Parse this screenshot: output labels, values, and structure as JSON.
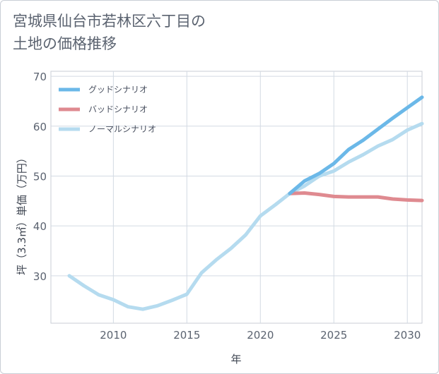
{
  "title_lines": [
    "宮城県仙台市若林区六丁目の",
    "土地の価格推移"
  ],
  "chart_data": {
    "type": "line",
    "xlabel": "年",
    "ylabel": "坪（3.3㎡）単価（万円）",
    "xlim": [
      2005.75,
      2031
    ],
    "ylim": [
      20.5,
      71
    ],
    "xticks": [
      2010,
      2015,
      2020,
      2025,
      2030
    ],
    "yticks": [
      30,
      40,
      50,
      60,
      70
    ],
    "grid": true,
    "legend_position": "top-left",
    "series": [
      {
        "name": "グッドシナリオ",
        "color": "#6bb8e8",
        "x": [
          2022,
          2023,
          2024,
          2025,
          2026,
          2027,
          2028,
          2029,
          2030,
          2031
        ],
        "y": [
          46.5,
          49.0,
          50.5,
          52.5,
          55.3,
          57.2,
          59.4,
          61.6,
          63.7,
          65.8
        ]
      },
      {
        "name": "バッドシナリオ",
        "color": "#df8a90",
        "x": [
          2022,
          2023,
          2024,
          2025,
          2026,
          2027,
          2028,
          2029,
          2030,
          2031
        ],
        "y": [
          46.5,
          46.6,
          46.3,
          45.9,
          45.8,
          45.8,
          45.8,
          45.4,
          45.2,
          45.1
        ]
      },
      {
        "name": "ノーマルシナリオ",
        "color": "#b5dbef",
        "x": [
          2007,
          2008,
          2009,
          2010,
          2011,
          2012,
          2013,
          2014,
          2015,
          2016,
          2017,
          2018,
          2019,
          2020,
          2021,
          2022,
          2023,
          2024,
          2025,
          2026,
          2027,
          2028,
          2029,
          2030,
          2031
        ],
        "y": [
          30.0,
          28.0,
          26.2,
          25.2,
          23.8,
          23.3,
          24.0,
          25.1,
          26.3,
          30.6,
          33.2,
          35.5,
          38.2,
          42.0,
          44.2,
          46.5,
          48.0,
          50.0,
          51.0,
          52.8,
          54.3,
          56.0,
          57.3,
          59.2,
          60.5
        ]
      }
    ]
  }
}
